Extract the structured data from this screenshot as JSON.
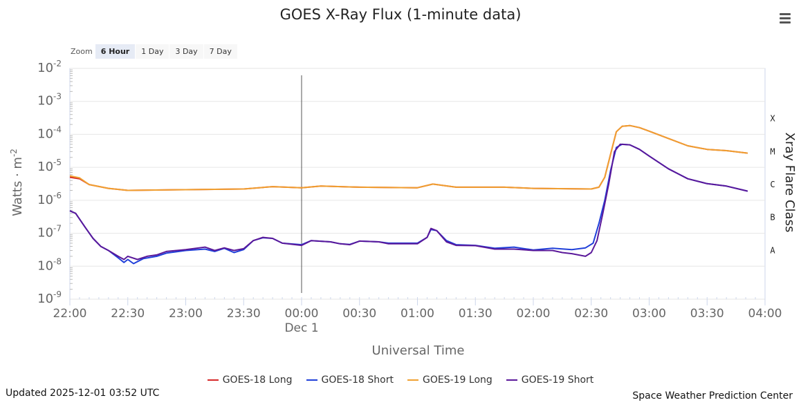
{
  "chart_data": {
    "type": "line",
    "title": "GOES X-Ray Flux (1-minute data)",
    "xlabel": "Universal Time",
    "ylabel": "Watts · m",
    "ylabel_sup": "-2",
    "y2label": "Xray Flare Class",
    "y_scale": "log",
    "ylim": [
      1e-09,
      0.01
    ],
    "xlim": [
      "2025-11-30 22:00",
      "2025-12-01 04:00"
    ],
    "grid": true,
    "legend_position": "bottom",
    "y_ticks": [
      {
        "base": "10",
        "exp": "-9",
        "value": 1e-09
      },
      {
        "base": "10",
        "exp": "-8",
        "value": 1e-08
      },
      {
        "base": "10",
        "exp": "-7",
        "value": 1e-07
      },
      {
        "base": "10",
        "exp": "-6",
        "value": 1e-06
      },
      {
        "base": "10",
        "exp": "-5",
        "value": 1e-05
      },
      {
        "base": "10",
        "exp": "-4",
        "value": 0.0001
      },
      {
        "base": "10",
        "exp": "-3",
        "value": 0.001
      },
      {
        "base": "10",
        "exp": "-2",
        "value": 0.01
      }
    ],
    "x_ticks": [
      {
        "label": "22:00",
        "time": "2025-11-30 22:00"
      },
      {
        "label": "22:30",
        "time": "2025-11-30 22:30"
      },
      {
        "label": "23:00",
        "time": "2025-11-30 23:00"
      },
      {
        "label": "23:30",
        "time": "2025-11-30 23:30"
      },
      {
        "label": "00:00",
        "time": "2025-12-01 00:00",
        "sublabel": "Dec 1"
      },
      {
        "label": "00:30",
        "time": "2025-12-01 00:30"
      },
      {
        "label": "01:00",
        "time": "2025-12-01 01:00"
      },
      {
        "label": "01:30",
        "time": "2025-12-01 01:30"
      },
      {
        "label": "02:00",
        "time": "2025-12-01 02:00"
      },
      {
        "label": "02:30",
        "time": "2025-12-01 02:30"
      },
      {
        "label": "03:00",
        "time": "2025-12-01 03:00"
      },
      {
        "label": "03:30",
        "time": "2025-12-01 03:30"
      },
      {
        "label": "04:00",
        "time": "2025-12-01 04:00"
      }
    ],
    "flare_classes": [
      {
        "label": "X",
        "value": 0.0001
      },
      {
        "label": "M",
        "value": 1e-05
      },
      {
        "label": "C",
        "value": 1e-06
      },
      {
        "label": "B",
        "value": 1e-07
      },
      {
        "label": "A",
        "value": 1e-08
      }
    ],
    "day_marker": "2025-12-01 00:00",
    "series": [
      {
        "name": "GOES-18 Long",
        "color": "#d62728",
        "points": [
          [
            "2025-11-30 22:00",
            5e-06
          ],
          [
            "2025-11-30 22:05",
            4.5e-06
          ],
          [
            "2025-11-30 22:10",
            3e-06
          ],
          [
            "2025-11-30 22:20",
            2.3e-06
          ],
          [
            "2025-11-30 22:30",
            2e-06
          ],
          [
            "2025-11-30 23:00",
            2.1e-06
          ],
          [
            "2025-11-30 23:30",
            2.2e-06
          ],
          [
            "2025-11-30 23:45",
            2.6e-06
          ],
          [
            "2025-12-01 00:00",
            2.4e-06
          ],
          [
            "2025-12-01 00:10",
            2.7e-06
          ],
          [
            "2025-12-01 00:30",
            2.5e-06
          ],
          [
            "2025-12-01 01:00",
            2.4e-06
          ],
          [
            "2025-12-01 01:08",
            3.1e-06
          ],
          [
            "2025-12-01 01:20",
            2.5e-06
          ],
          [
            "2025-12-01 01:45",
            2.5e-06
          ],
          [
            "2025-12-01 02:00",
            2.3e-06
          ],
          [
            "2025-12-01 02:30",
            2.2e-06
          ],
          [
            "2025-12-01 02:34",
            2.5e-06
          ],
          [
            "2025-12-01 02:37",
            5e-06
          ],
          [
            "2025-12-01 02:40",
            2.5e-05
          ],
          [
            "2025-12-01 02:43",
            0.00012
          ],
          [
            "2025-12-01 02:46",
            0.000175
          ],
          [
            "2025-12-01 02:50",
            0.000185
          ],
          [
            "2025-12-01 02:55",
            0.00016
          ],
          [
            "2025-12-01 03:00",
            0.000125
          ],
          [
            "2025-12-01 03:10",
            7.5e-05
          ],
          [
            "2025-12-01 03:20",
            4.5e-05
          ],
          [
            "2025-12-01 03:30",
            3.5e-05
          ],
          [
            "2025-12-01 03:40",
            3.2e-05
          ],
          [
            "2025-12-01 03:51",
            2.7e-05
          ]
        ]
      },
      {
        "name": "GOES-18 Short",
        "color": "#1f3fd9",
        "points": [
          [
            "2025-11-30 22:00",
            4.8e-07
          ],
          [
            "2025-11-30 22:03",
            4e-07
          ],
          [
            "2025-11-30 22:08",
            1.5e-07
          ],
          [
            "2025-11-30 22:12",
            7e-08
          ],
          [
            "2025-11-30 22:16",
            4e-08
          ],
          [
            "2025-11-30 22:20",
            3e-08
          ],
          [
            "2025-11-30 22:25",
            1.8e-08
          ],
          [
            "2025-11-30 22:28",
            1.3e-08
          ],
          [
            "2025-11-30 22:30",
            1.6e-08
          ],
          [
            "2025-11-30 22:33",
            1.2e-08
          ],
          [
            "2025-11-30 22:38",
            1.7e-08
          ],
          [
            "2025-11-30 22:45",
            2e-08
          ],
          [
            "2025-11-30 22:50",
            2.5e-08
          ],
          [
            "2025-11-30 23:00",
            3e-08
          ],
          [
            "2025-11-30 23:10",
            3.3e-08
          ],
          [
            "2025-11-30 23:15",
            2.8e-08
          ],
          [
            "2025-11-30 23:20",
            3.5e-08
          ],
          [
            "2025-11-30 23:25",
            2.6e-08
          ],
          [
            "2025-11-30 23:30",
            3.2e-08
          ],
          [
            "2025-11-30 23:35",
            6e-08
          ],
          [
            "2025-11-30 23:40",
            7.3e-08
          ],
          [
            "2025-11-30 23:45",
            7e-08
          ],
          [
            "2025-11-30 23:50",
            5e-08
          ],
          [
            "2025-12-01 00:00",
            4.5e-08
          ],
          [
            "2025-12-01 00:05",
            6e-08
          ],
          [
            "2025-12-01 00:15",
            5.5e-08
          ],
          [
            "2025-12-01 00:20",
            4.8e-08
          ],
          [
            "2025-12-01 00:25",
            4.6e-08
          ],
          [
            "2025-12-01 00:30",
            5.8e-08
          ],
          [
            "2025-12-01 00:40",
            5.5e-08
          ],
          [
            "2025-12-01 00:45",
            5e-08
          ],
          [
            "2025-12-01 01:00",
            5e-08
          ],
          [
            "2025-12-01 01:05",
            7.5e-08
          ],
          [
            "2025-12-01 01:07",
            1.3e-07
          ],
          [
            "2025-12-01 01:10",
            1.2e-07
          ],
          [
            "2025-12-01 01:15",
            6e-08
          ],
          [
            "2025-12-01 01:20",
            4.5e-08
          ],
          [
            "2025-12-01 01:30",
            4.3e-08
          ],
          [
            "2025-12-01 01:40",
            3.5e-08
          ],
          [
            "2025-12-01 01:50",
            3.8e-08
          ],
          [
            "2025-12-01 02:00",
            3.1e-08
          ],
          [
            "2025-12-01 02:10",
            3.5e-08
          ],
          [
            "2025-12-01 02:20",
            3.2e-08
          ],
          [
            "2025-12-01 02:27",
            3.6e-08
          ],
          [
            "2025-12-01 02:31",
            5e-08
          ],
          [
            "2025-12-01 02:34",
            2e-07
          ],
          [
            "2025-12-01 02:37",
            1e-06
          ],
          [
            "2025-12-01 02:40",
            8e-06
          ],
          [
            "2025-12-01 02:43",
            4e-05
          ],
          [
            "2025-12-01 02:46",
            5e-05
          ],
          [
            "2025-12-01 02:50",
            4.8e-05
          ],
          [
            "2025-12-01 02:55",
            3.5e-05
          ],
          [
            "2025-12-01 03:00",
            2.2e-05
          ],
          [
            "2025-12-01 03:10",
            9e-06
          ],
          [
            "2025-12-01 03:20",
            4.5e-06
          ],
          [
            "2025-12-01 03:30",
            3.2e-06
          ],
          [
            "2025-12-01 03:40",
            2.7e-06
          ],
          [
            "2025-12-01 03:51",
            1.9e-06
          ]
        ]
      },
      {
        "name": "GOES-19 Long",
        "color": "#f0a030",
        "points": [
          [
            "2025-11-30 22:00",
            5.5e-06
          ],
          [
            "2025-11-30 22:05",
            4.8e-06
          ],
          [
            "2025-11-30 22:10",
            3e-06
          ],
          [
            "2025-11-30 22:20",
            2.3e-06
          ],
          [
            "2025-11-30 22:30",
            2e-06
          ],
          [
            "2025-11-30 23:00",
            2.1e-06
          ],
          [
            "2025-11-30 23:30",
            2.2e-06
          ],
          [
            "2025-11-30 23:45",
            2.6e-06
          ],
          [
            "2025-12-01 00:00",
            2.4e-06
          ],
          [
            "2025-12-01 00:10",
            2.7e-06
          ],
          [
            "2025-12-01 00:30",
            2.5e-06
          ],
          [
            "2025-12-01 01:00",
            2.4e-06
          ],
          [
            "2025-12-01 01:08",
            3.1e-06
          ],
          [
            "2025-12-01 01:20",
            2.5e-06
          ],
          [
            "2025-12-01 01:45",
            2.5e-06
          ],
          [
            "2025-12-01 02:00",
            2.3e-06
          ],
          [
            "2025-12-01 02:30",
            2.2e-06
          ],
          [
            "2025-12-01 02:34",
            2.5e-06
          ],
          [
            "2025-12-01 02:37",
            5e-06
          ],
          [
            "2025-12-01 02:40",
            2.5e-05
          ],
          [
            "2025-12-01 02:43",
            0.00012
          ],
          [
            "2025-12-01 02:46",
            0.000175
          ],
          [
            "2025-12-01 02:50",
            0.000185
          ],
          [
            "2025-12-01 02:55",
            0.00016
          ],
          [
            "2025-12-01 03:00",
            0.000125
          ],
          [
            "2025-12-01 03:10",
            7.5e-05
          ],
          [
            "2025-12-01 03:20",
            4.5e-05
          ],
          [
            "2025-12-01 03:30",
            3.5e-05
          ],
          [
            "2025-12-01 03:40",
            3.2e-05
          ],
          [
            "2025-12-01 03:51",
            2.7e-05
          ]
        ]
      },
      {
        "name": "GOES-19 Short",
        "color": "#5a189a",
        "points": [
          [
            "2025-11-30 22:00",
            4.8e-07
          ],
          [
            "2025-11-30 22:03",
            4e-07
          ],
          [
            "2025-11-30 22:08",
            1.5e-07
          ],
          [
            "2025-11-30 22:12",
            7e-08
          ],
          [
            "2025-11-30 22:16",
            4e-08
          ],
          [
            "2025-11-30 22:20",
            3e-08
          ],
          [
            "2025-11-30 22:25",
            2e-08
          ],
          [
            "2025-11-30 22:28",
            1.6e-08
          ],
          [
            "2025-11-30 22:30",
            2e-08
          ],
          [
            "2025-11-30 22:35",
            1.6e-08
          ],
          [
            "2025-11-30 22:40",
            2e-08
          ],
          [
            "2025-11-30 22:45",
            2.2e-08
          ],
          [
            "2025-11-30 22:50",
            2.8e-08
          ],
          [
            "2025-11-30 23:00",
            3.2e-08
          ],
          [
            "2025-11-30 23:10",
            3.8e-08
          ],
          [
            "2025-11-30 23:15",
            3e-08
          ],
          [
            "2025-11-30 23:20",
            3.6e-08
          ],
          [
            "2025-11-30 23:25",
            3e-08
          ],
          [
            "2025-11-30 23:30",
            3.4e-08
          ],
          [
            "2025-11-30 23:35",
            6e-08
          ],
          [
            "2025-11-30 23:40",
            7.5e-08
          ],
          [
            "2025-11-30 23:45",
            7e-08
          ],
          [
            "2025-11-30 23:50",
            5e-08
          ],
          [
            "2025-12-01 00:00",
            4.3e-08
          ],
          [
            "2025-12-01 00:05",
            6e-08
          ],
          [
            "2025-12-01 00:15",
            5.5e-08
          ],
          [
            "2025-12-01 00:20",
            4.8e-08
          ],
          [
            "2025-12-01 00:25",
            4.5e-08
          ],
          [
            "2025-12-01 00:30",
            5.8e-08
          ],
          [
            "2025-12-01 00:40",
            5.5e-08
          ],
          [
            "2025-12-01 00:45",
            4.8e-08
          ],
          [
            "2025-12-01 01:00",
            4.8e-08
          ],
          [
            "2025-12-01 01:05",
            7.5e-08
          ],
          [
            "2025-12-01 01:07",
            1.4e-07
          ],
          [
            "2025-12-01 01:10",
            1.2e-07
          ],
          [
            "2025-12-01 01:15",
            5.5e-08
          ],
          [
            "2025-12-01 01:20",
            4.3e-08
          ],
          [
            "2025-12-01 01:30",
            4.2e-08
          ],
          [
            "2025-12-01 01:40",
            3.3e-08
          ],
          [
            "2025-12-01 01:50",
            3.3e-08
          ],
          [
            "2025-12-01 02:00",
            3e-08
          ],
          [
            "2025-12-01 02:10",
            3e-08
          ],
          [
            "2025-12-01 02:15",
            2.6e-08
          ],
          [
            "2025-12-01 02:20",
            2.4e-08
          ],
          [
            "2025-12-01 02:27",
            2e-08
          ],
          [
            "2025-12-01 02:30",
            2.6e-08
          ],
          [
            "2025-12-01 02:33",
            6e-08
          ],
          [
            "2025-12-01 02:36",
            4e-07
          ],
          [
            "2025-12-01 02:39",
            3e-06
          ],
          [
            "2025-12-01 02:42",
            3e-05
          ],
          [
            "2025-12-01 02:45",
            5e-05
          ],
          [
            "2025-12-01 02:50",
            4.8e-05
          ],
          [
            "2025-12-01 02:55",
            3.5e-05
          ],
          [
            "2025-12-01 03:00",
            2.2e-05
          ],
          [
            "2025-12-01 03:10",
            9e-06
          ],
          [
            "2025-12-01 03:20",
            4.5e-06
          ],
          [
            "2025-12-01 03:30",
            3.2e-06
          ],
          [
            "2025-12-01 03:40",
            2.7e-06
          ],
          [
            "2025-12-01 03:51",
            1.9e-06
          ]
        ]
      }
    ]
  },
  "zoom": {
    "label": "Zoom",
    "buttons": [
      {
        "label": "6 Hour",
        "active": true
      },
      {
        "label": "1 Day",
        "active": false
      },
      {
        "label": "3 Day",
        "active": false
      },
      {
        "label": "7 Day",
        "active": false
      }
    ]
  },
  "menu": {
    "icon": "hamburger-menu-icon"
  },
  "footer": {
    "updated": "Updated 2025-12-01 03:52 UTC",
    "credit": "Space Weather Prediction Center"
  }
}
